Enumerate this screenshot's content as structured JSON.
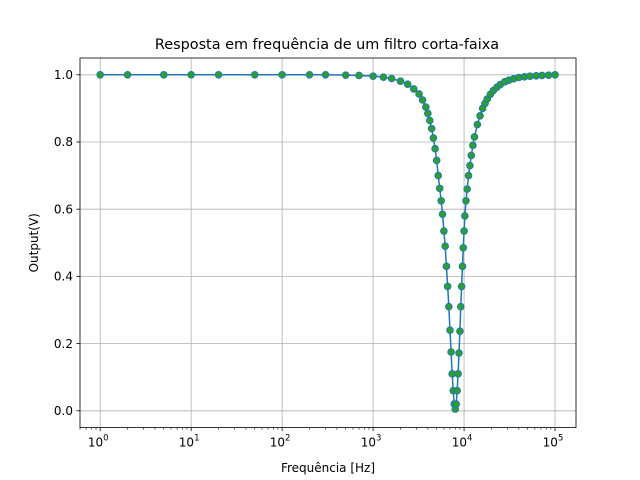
{
  "chart_data": {
    "type": "line",
    "title": "Resposta em frequência de um filtro corta-faixa",
    "xlabel": "Frequência [Hz]",
    "ylabel": "Output(V)",
    "x_scale": "log",
    "xlim": [
      0.6,
      170000
    ],
    "ylim": [
      -0.05,
      1.05
    ],
    "grid": true,
    "x_ticks": [
      {
        "value": 1,
        "base": "10",
        "exp": "0"
      },
      {
        "value": 10,
        "base": "10",
        "exp": "1"
      },
      {
        "value": 100,
        "base": "10",
        "exp": "2"
      },
      {
        "value": 1000,
        "base": "10",
        "exp": "3"
      },
      {
        "value": 10000,
        "base": "10",
        "exp": "4"
      },
      {
        "value": 100000,
        "base": "10",
        "exp": "5"
      }
    ],
    "y_ticks": [
      {
        "value": 0.0,
        "label": "0.0"
      },
      {
        "value": 0.2,
        "label": "0.2"
      },
      {
        "value": 0.4,
        "label": "0.4"
      },
      {
        "value": 0.6,
        "label": "0.6"
      },
      {
        "value": 0.8,
        "label": "0.8"
      },
      {
        "value": 1.0,
        "label": "1.0"
      }
    ],
    "colors": {
      "line": "#1f77b4",
      "marker_face": "#2ca02c",
      "marker_edge": "#1f77b4",
      "grid": "#b0b0b0"
    },
    "series": [
      {
        "x": [
          1,
          2,
          5,
          10,
          20,
          50,
          100,
          200,
          300,
          500,
          700,
          1000,
          1300,
          1600,
          2000,
          2400,
          2800,
          3200,
          3500,
          3800,
          4000,
          4200,
          4400,
          4600,
          4800,
          5000,
          5200,
          5400,
          5600,
          5800,
          6000,
          6200,
          6400,
          6600,
          6800,
          7000,
          7200,
          7400,
          7600,
          7800,
          8000,
          8200,
          8400,
          8600,
          8800,
          9000,
          9200,
          9400,
          9600,
          9800,
          10000,
          10200,
          10500,
          10800,
          11200,
          11600,
          12000,
          12500,
          13000,
          14000,
          15000,
          16000,
          17000,
          18000,
          19500,
          21000,
          23000,
          25000,
          28000,
          31000,
          35000,
          40000,
          46000,
          53000,
          62000,
          72000,
          85000,
          100000
        ],
        "y": [
          1.0,
          1.0,
          1.0,
          1.0,
          1.0,
          1.0,
          1.0,
          1.0,
          1.0,
          0.999,
          0.998,
          0.996,
          0.993,
          0.989,
          0.981,
          0.972,
          0.958,
          0.943,
          0.925,
          0.904,
          0.885,
          0.864,
          0.84,
          0.812,
          0.78,
          0.745,
          0.7,
          0.662,
          0.625,
          0.585,
          0.535,
          0.49,
          0.43,
          0.37,
          0.31,
          0.24,
          0.175,
          0.11,
          0.06,
          0.02,
          0.005,
          0.02,
          0.06,
          0.11,
          0.172,
          0.237,
          0.31,
          0.37,
          0.43,
          0.485,
          0.535,
          0.58,
          0.625,
          0.66,
          0.7,
          0.73,
          0.76,
          0.79,
          0.815,
          0.852,
          0.878,
          0.9,
          0.915,
          0.928,
          0.942,
          0.953,
          0.963,
          0.971,
          0.979,
          0.984,
          0.988,
          0.992,
          0.994,
          0.996,
          0.997,
          0.998,
          0.999,
          1.0
        ]
      }
    ]
  }
}
